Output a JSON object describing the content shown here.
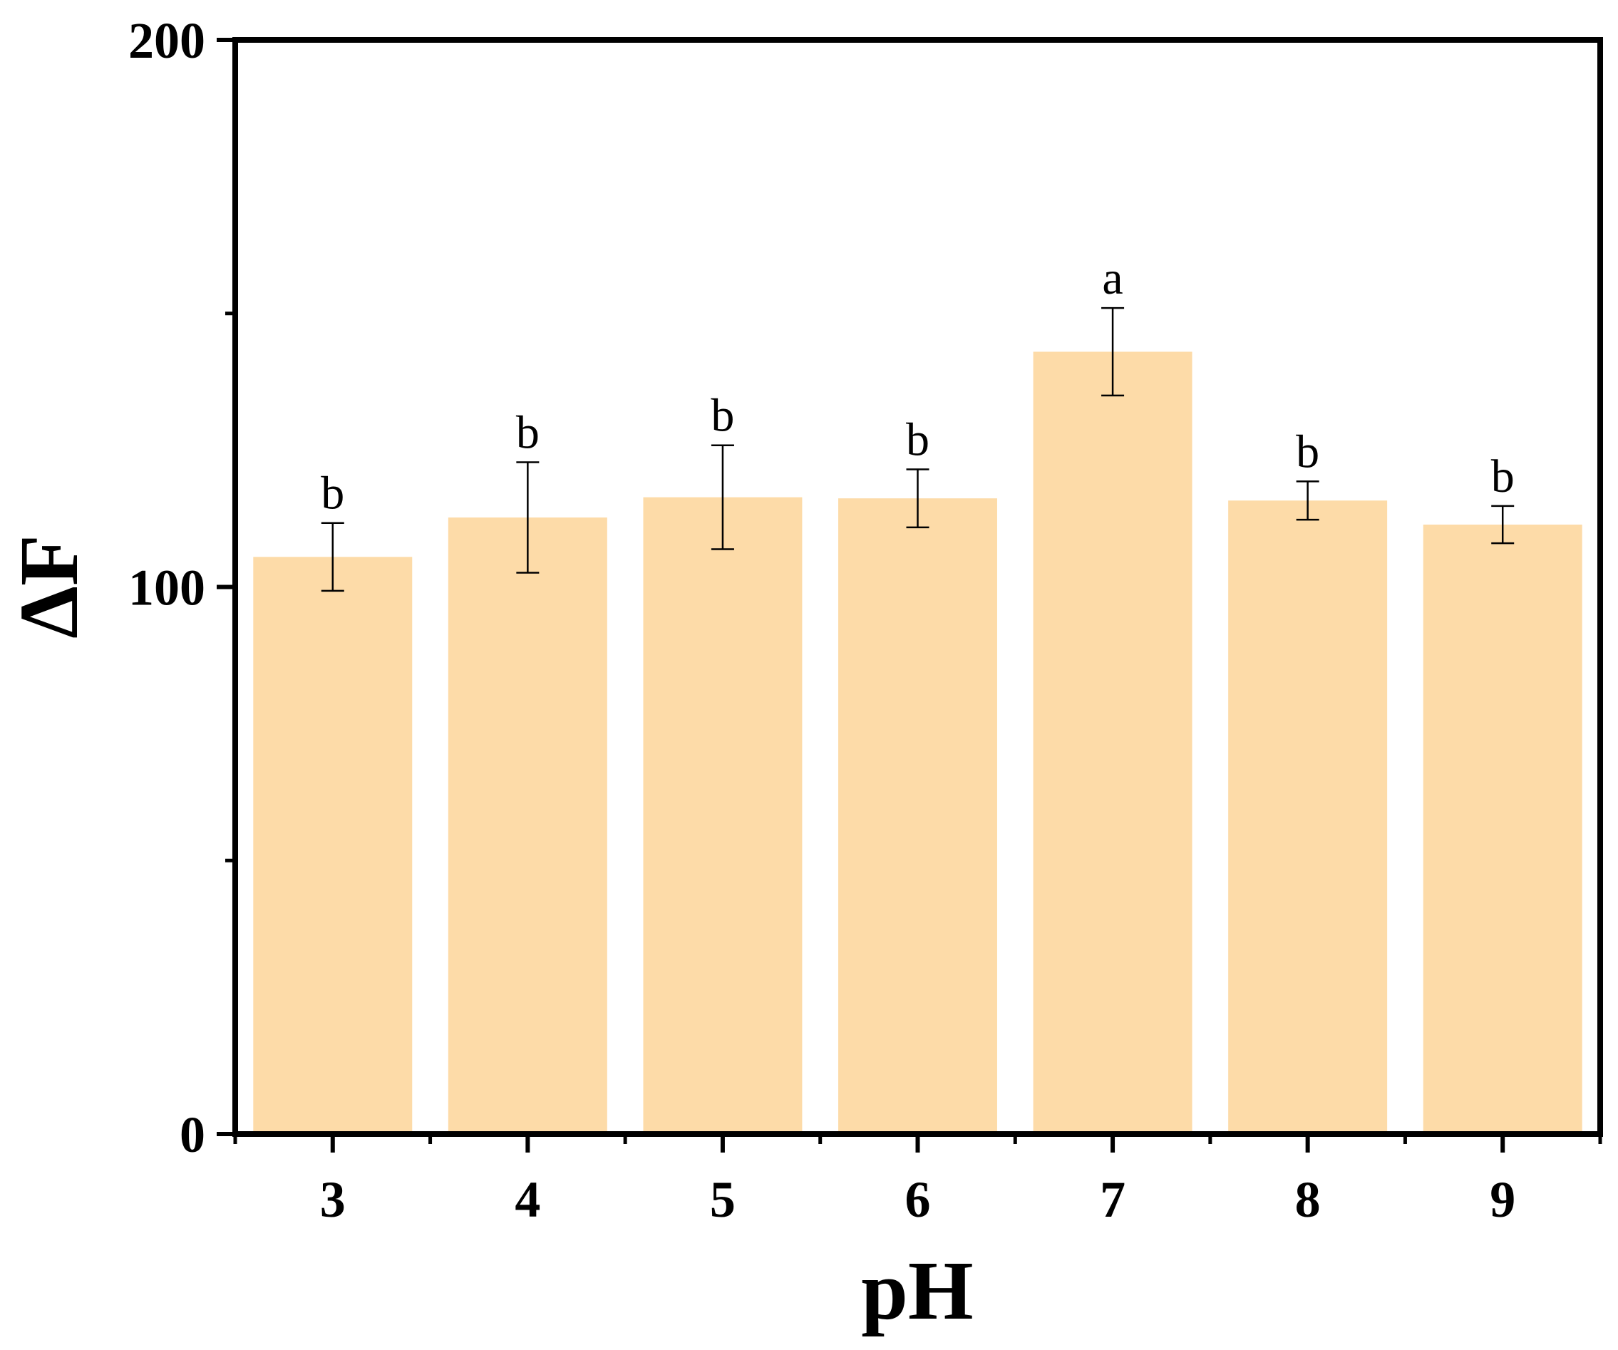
{
  "chart_data": {
    "type": "bar",
    "xlabel": "pH",
    "ylabel": "ΔF",
    "categories": [
      "3",
      "4",
      "5",
      "6",
      "7",
      "8",
      "9"
    ],
    "values": [
      105.5,
      112.7,
      116.4,
      116.2,
      143.0,
      115.8,
      111.4
    ],
    "errors": [
      6.2,
      10.1,
      9.5,
      5.3,
      8.0,
      3.5,
      3.4
    ],
    "significance": [
      "b",
      "b",
      "b",
      "b",
      "a",
      "b",
      "b"
    ],
    "ylim": [
      0,
      200
    ],
    "yticks": [
      0,
      100,
      200
    ],
    "yticks_minor": [
      50,
      150
    ],
    "ytick_labels": [
      "0",
      "100",
      "200"
    ],
    "grid": false,
    "bar_color": "#FDDBA8",
    "axis_color": "#000000"
  }
}
